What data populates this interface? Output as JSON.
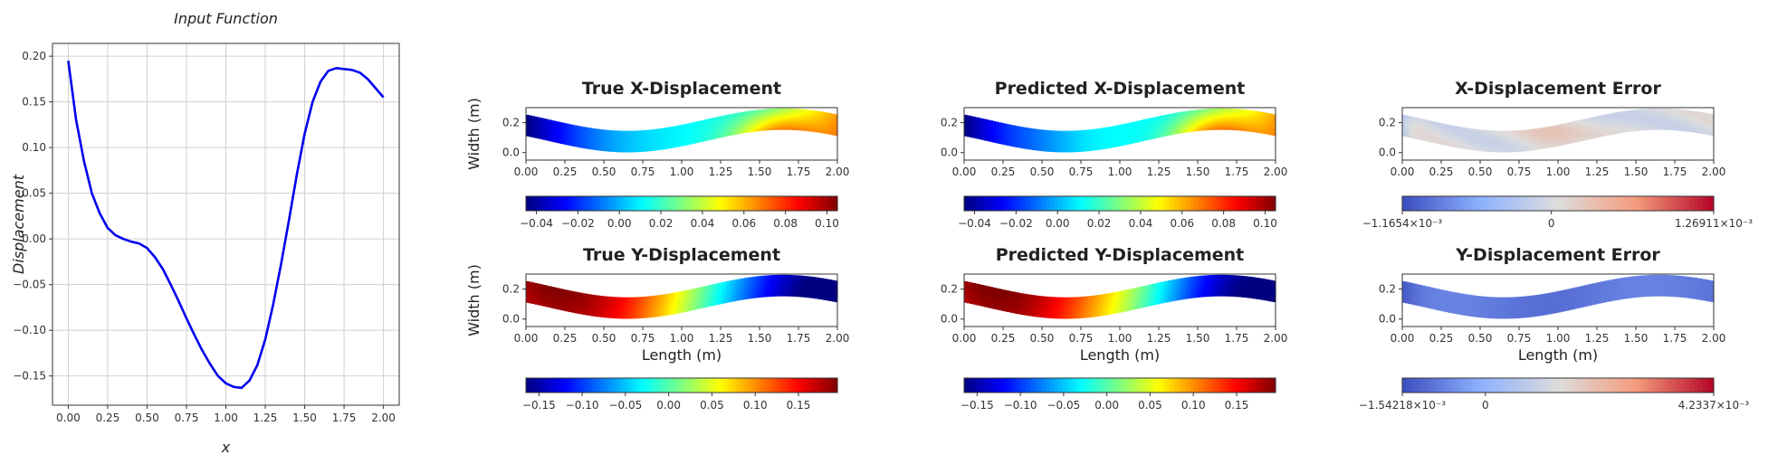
{
  "chart_data": [
    {
      "id": "input",
      "type": "line",
      "title": "Input Function",
      "xlabel": "x",
      "ylabel": "Displacement",
      "xlim": [
        -0.1,
        2.1
      ],
      "ylim": [
        -0.182,
        0.214
      ],
      "grid": true,
      "xticks": [
        0,
        0.25,
        0.5,
        0.75,
        1.0,
        1.25,
        1.5,
        1.75,
        2.0
      ],
      "xtick_labels": [
        "0.00",
        "0.25",
        "0.50",
        "0.75",
        "1.00",
        "1.25",
        "1.50",
        "1.75",
        "2.00"
      ],
      "yticks": [
        -0.15,
        -0.1,
        -0.05,
        0.0,
        0.05,
        0.1,
        0.15,
        0.2
      ],
      "ytick_labels": [
        "−0.15",
        "−0.10",
        "−0.05",
        "0.00",
        "0.05",
        "0.10",
        "0.15",
        "0.20"
      ],
      "series": [
        {
          "name": "input",
          "color": "#0000ee",
          "x": [
            0.0,
            0.05,
            0.1,
            0.15,
            0.2,
            0.25,
            0.3,
            0.35,
            0.4,
            0.45,
            0.5,
            0.55,
            0.6,
            0.65,
            0.7,
            0.75,
            0.8,
            0.85,
            0.9,
            0.95,
            1.0,
            1.05,
            1.1,
            1.15,
            1.2,
            1.25,
            1.3,
            1.35,
            1.4,
            1.45,
            1.5,
            1.55,
            1.6,
            1.65,
            1.7,
            1.75,
            1.8,
            1.85,
            1.9,
            1.95,
            2.0
          ],
          "y": [
            0.195,
            0.13,
            0.085,
            0.05,
            0.028,
            0.012,
            0.004,
            0.0,
            -0.003,
            -0.005,
            -0.01,
            -0.02,
            -0.033,
            -0.05,
            -0.068,
            -0.087,
            -0.105,
            -0.122,
            -0.137,
            -0.15,
            -0.158,
            -0.162,
            -0.163,
            -0.155,
            -0.138,
            -0.11,
            -0.072,
            -0.028,
            0.02,
            0.07,
            0.115,
            0.15,
            0.172,
            0.184,
            0.187,
            0.186,
            0.185,
            0.182,
            0.175,
            0.165,
            0.155
          ]
        }
      ]
    },
    {
      "id": "true_x",
      "type": "heatmap",
      "title": "True X-Displacement",
      "ylabel": "Width (m)",
      "xlabel": "",
      "xlim": [
        0,
        2
      ],
      "ylim": [
        -0.05,
        0.3
      ],
      "colormap": "jet",
      "clim": [
        -0.045,
        0.105
      ],
      "colorbar_ticks": [
        "−0.04",
        "−0.02",
        "0.00",
        "0.02",
        "0.04",
        "0.06",
        "0.08",
        "0.10"
      ],
      "colorbar_tick_values": [
        -0.04,
        -0.02,
        0.0,
        0.02,
        0.04,
        0.06,
        0.08,
        0.1
      ]
    },
    {
      "id": "pred_x",
      "type": "heatmap",
      "title": "Predicted X-Displacement",
      "ylabel": "",
      "xlabel": "",
      "xlim": [
        0,
        2
      ],
      "ylim": [
        -0.05,
        0.3
      ],
      "colormap": "jet",
      "clim": [
        -0.045,
        0.105
      ],
      "colorbar_ticks": [
        "−0.04",
        "−0.02",
        "0.00",
        "0.02",
        "0.04",
        "0.06",
        "0.08",
        "0.10"
      ],
      "colorbar_tick_values": [
        -0.04,
        -0.02,
        0.0,
        0.02,
        0.04,
        0.06,
        0.08,
        0.1
      ]
    },
    {
      "id": "err_x",
      "type": "heatmap",
      "title": "X-Displacement Error",
      "ylabel": "",
      "xlabel": "",
      "xlim": [
        0,
        2
      ],
      "ylim": [
        -0.05,
        0.3
      ],
      "colormap": "coolwarm",
      "clim": [
        -0.0011654,
        0.00126911
      ],
      "colorbar_ticks": [
        "−1.1654×10⁻³",
        "0",
        "1.26911×10⁻³"
      ],
      "colorbar_tick_values": [
        -0.0011654,
        0.0,
        0.00126911
      ]
    },
    {
      "id": "true_y",
      "type": "heatmap",
      "title": "True Y-Displacement",
      "ylabel": "Width (m)",
      "xlabel": "Length (m)",
      "xlim": [
        0,
        2
      ],
      "ylim": [
        -0.05,
        0.3
      ],
      "colormap": "jet",
      "clim": [
        -0.165,
        0.195
      ],
      "colorbar_ticks": [
        "−0.15",
        "−0.10",
        "−0.05",
        "0.00",
        "0.05",
        "0.10",
        "0.15"
      ],
      "colorbar_tick_values": [
        -0.15,
        -0.1,
        -0.05,
        0.0,
        0.05,
        0.1,
        0.15
      ]
    },
    {
      "id": "pred_y",
      "type": "heatmap",
      "title": "Predicted Y-Displacement",
      "ylabel": "",
      "xlabel": "Length (m)",
      "xlim": [
        0,
        2
      ],
      "ylim": [
        -0.05,
        0.3
      ],
      "colormap": "jet",
      "clim": [
        -0.165,
        0.195
      ],
      "colorbar_ticks": [
        "−0.15",
        "−0.10",
        "−0.05",
        "0.00",
        "0.05",
        "0.10",
        "0.15"
      ],
      "colorbar_tick_values": [
        -0.15,
        -0.1,
        -0.05,
        0.0,
        0.05,
        0.1,
        0.15
      ]
    },
    {
      "id": "err_y",
      "type": "heatmap",
      "title": "Y-Displacement Error",
      "ylabel": "",
      "xlabel": "Length (m)",
      "xlim": [
        0,
        2
      ],
      "ylim": [
        -0.05,
        0.3
      ],
      "colormap": "coolwarm",
      "clim": [
        -0.00154218,
        0.0042337
      ],
      "colorbar_ticks": [
        "−1.54218×10⁻³",
        "0",
        "4.2337×10⁻³"
      ],
      "colorbar_tick_values": [
        -0.00154218,
        0.0,
        0.0042337
      ]
    }
  ],
  "field_axes": {
    "xtick_labels": [
      "0.00",
      "0.25",
      "0.50",
      "0.75",
      "1.00",
      "1.25",
      "1.50",
      "1.75",
      "2.00"
    ],
    "ytick_labels": [
      "0.0",
      "0.2"
    ]
  }
}
